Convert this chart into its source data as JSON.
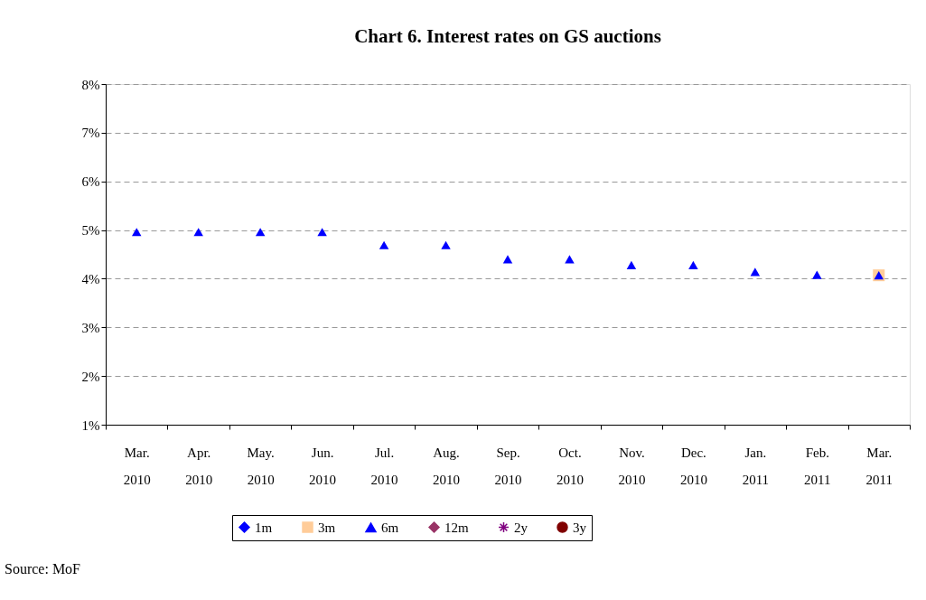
{
  "chart_data": {
    "type": "scatter",
    "title": "Chart 6. Interest rates on GS auctions",
    "categories": [
      "Mar. 2010",
      "Apr. 2010",
      "May. 2010",
      "Jun. 2010",
      "Jul. 2010",
      "Aug. 2010",
      "Sep. 2010",
      "Oct. 2010",
      "Nov. 2010",
      "Dec. 2010",
      "Jan. 2011",
      "Feb. 2011",
      "Mar. 2011"
    ],
    "series": [
      {
        "name": "1m",
        "type": "line",
        "marker": "diamond",
        "color": "#0000ff",
        "values": [
          null,
          null,
          null,
          null,
          null,
          null,
          null,
          null,
          null,
          null,
          null,
          null,
          null
        ]
      },
      {
        "name": "3m",
        "type": "line",
        "marker": "square",
        "color": "#ffcc99",
        "values": [
          null,
          null,
          null,
          null,
          null,
          null,
          null,
          null,
          null,
          null,
          null,
          null,
          4.07
        ]
      },
      {
        "name": "6m",
        "marker": "triangle",
        "color": "#0000ff",
        "values": [
          4.96,
          4.96,
          4.96,
          4.96,
          4.69,
          4.69,
          4.4,
          4.4,
          4.28,
          4.28,
          4.14,
          4.08,
          4.07
        ]
      },
      {
        "name": "12m",
        "marker": "diamond",
        "color": "#993366",
        "values": [
          null,
          null,
          null,
          null,
          null,
          null,
          null,
          null,
          null,
          null,
          null,
          null,
          null
        ]
      },
      {
        "name": "2y",
        "type": "line",
        "marker": "cross",
        "color": "#800080",
        "values": [
          null,
          null,
          null,
          null,
          null,
          null,
          null,
          null,
          null,
          null,
          null,
          null,
          null
        ]
      },
      {
        "name": "3y",
        "type": "line",
        "marker": "circle",
        "color": "#800000",
        "values": [
          null,
          null,
          null,
          null,
          null,
          null,
          null,
          null,
          null,
          null,
          null,
          null,
          null
        ]
      }
    ],
    "ylim": [
      1,
      8
    ],
    "yticks": [
      {
        "value": 1,
        "label": "1%"
      },
      {
        "value": 2,
        "label": "2%"
      },
      {
        "value": 3,
        "label": "3%"
      },
      {
        "value": 4,
        "label": "4%"
      },
      {
        "value": 5,
        "label": "5%"
      },
      {
        "value": 6,
        "label": "6%"
      },
      {
        "value": 7,
        "label": "7%"
      },
      {
        "value": 8,
        "label": "8%"
      }
    ],
    "grid": "y",
    "legend": "bottom",
    "annotations": [
      "Source: MoF"
    ]
  }
}
